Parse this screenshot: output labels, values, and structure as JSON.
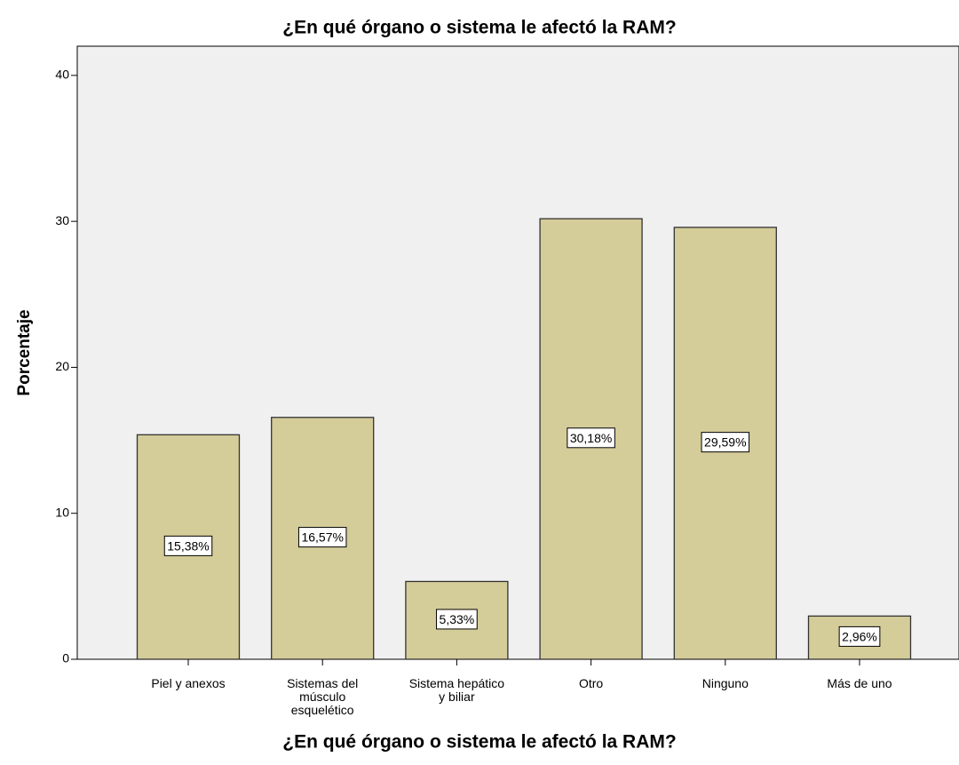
{
  "chart_data": {
    "type": "bar",
    "title": "¿En qué órgano o sistema le afectó la RAM?",
    "x_label": "¿En qué órgano o sistema le afectó la RAM?",
    "y_label": "Porcentaje",
    "categories": [
      "Piel y anexos",
      "Sistemas del\nmúsculo\nesquelético",
      "Sistema hepático\ny biliar",
      "Otro",
      "Ninguno",
      "Más de uno"
    ],
    "values": [
      15.38,
      16.57,
      5.33,
      30.18,
      29.59,
      2.96
    ],
    "value_labels": [
      "15,38%",
      "16,57%",
      "5,33%",
      "30,18%",
      "29,59%",
      "2,96%"
    ],
    "color": "#d4cc99",
    "ylim": [
      0,
      42
    ],
    "yticks": [
      0,
      10,
      20,
      30,
      40
    ],
    "grid": false
  }
}
